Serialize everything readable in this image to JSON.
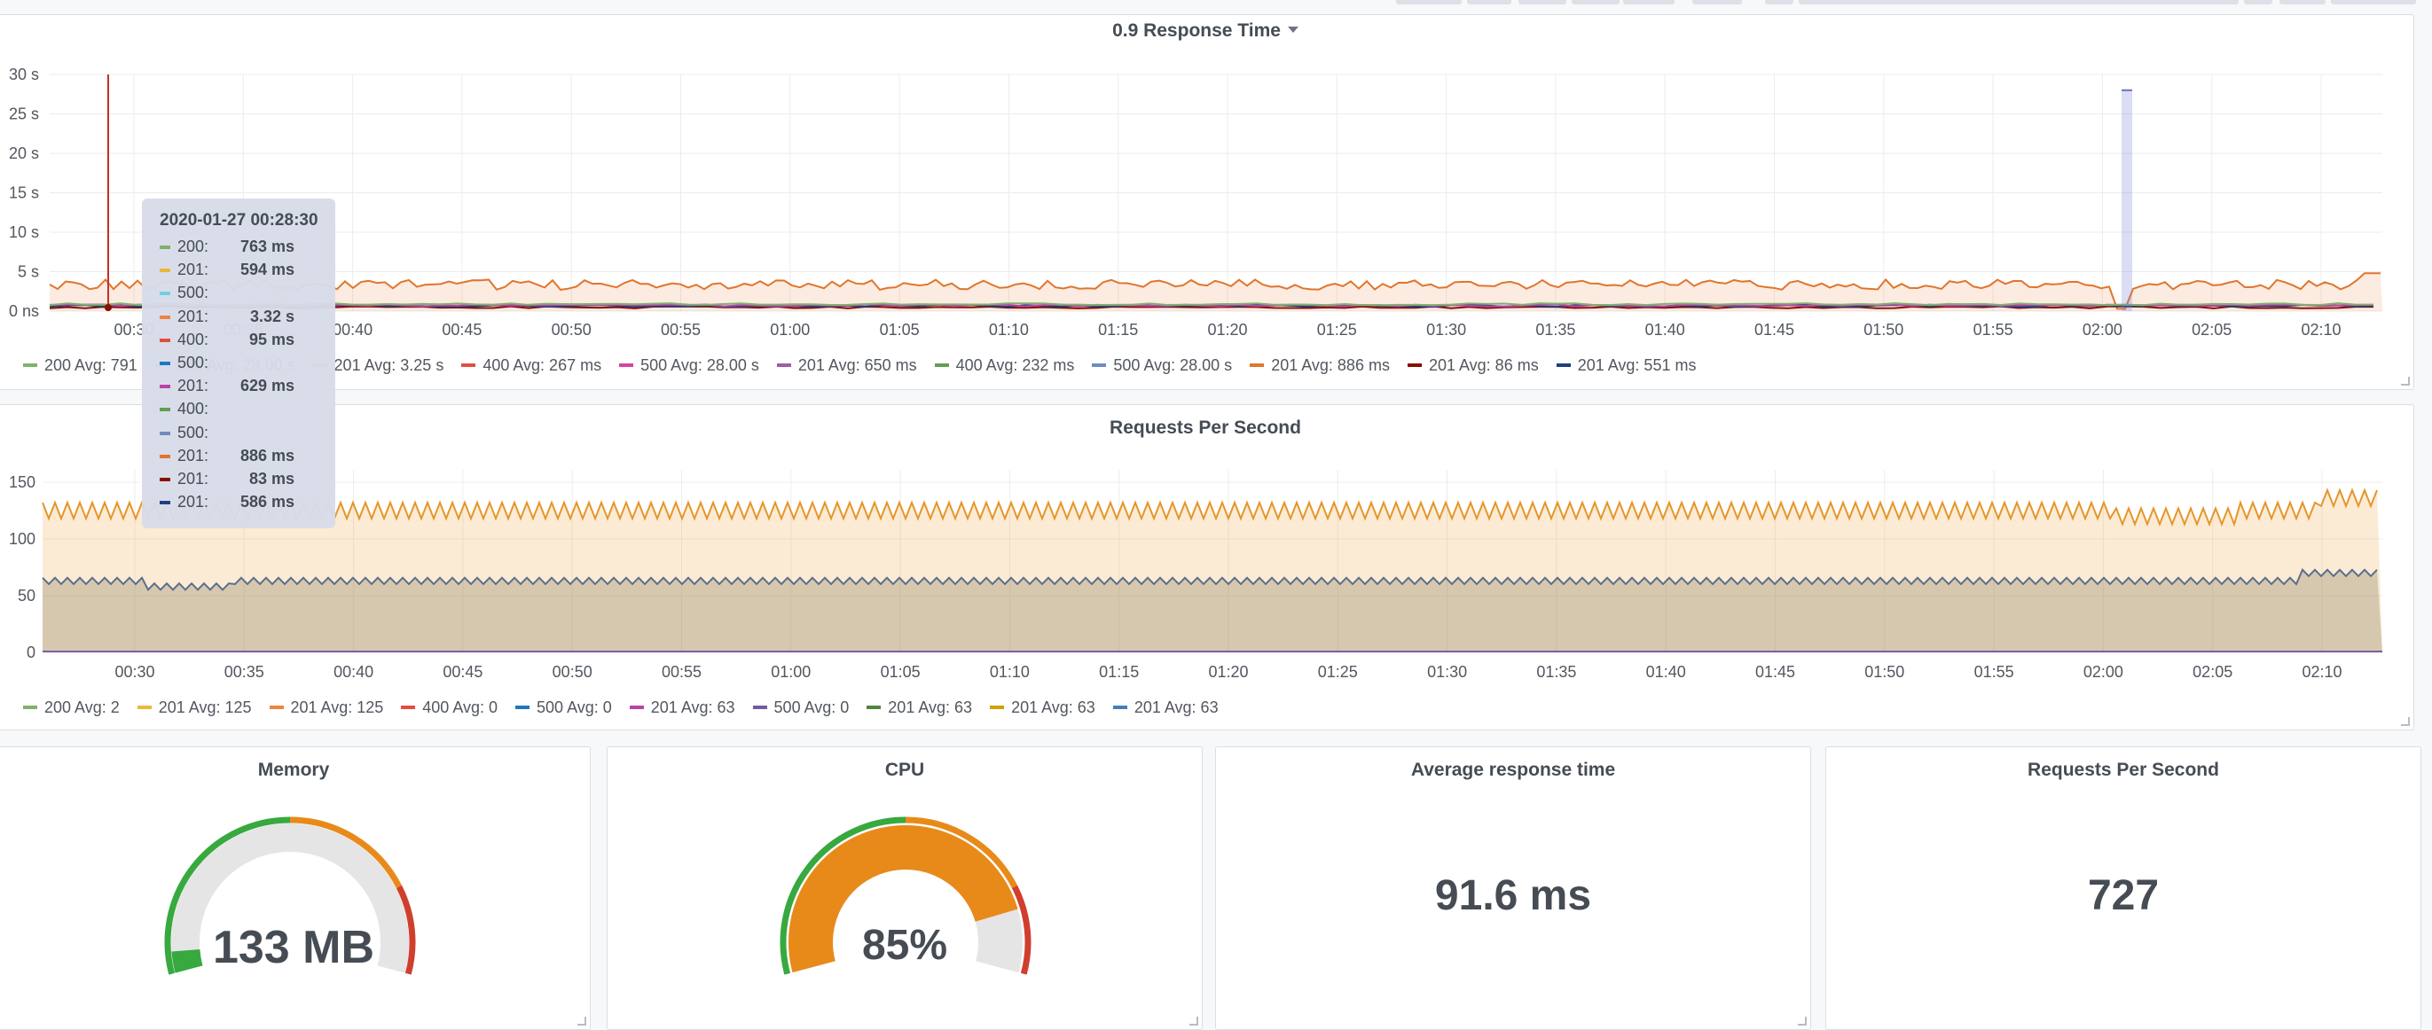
{
  "response_panel": {
    "title": "0.9 Response Time",
    "legend": [
      {
        "label": "200  Avg: 791",
        "color": "#7eb26d"
      },
      {
        "label": "500  Avg: 28.00 s",
        "color": "#6ed0e0"
      },
      {
        "label": "201  Avg: 3.25 s",
        "color": "#ef843c"
      },
      {
        "label": "400  Avg: 267 ms",
        "color": "#e24d42"
      },
      {
        "label": "500  Avg: 28.00 s",
        "color": "#d8439e"
      },
      {
        "label": "201  Avg: 650 ms",
        "color": "#a05da0"
      },
      {
        "label": "400  Avg: 232 ms",
        "color": "#629e51"
      },
      {
        "label": "500  Avg: 28.00 s",
        "color": "#6d8ebd"
      },
      {
        "label": "201  Avg: 886 ms",
        "color": "#e0752d"
      },
      {
        "label": "201  Avg: 86 ms",
        "color": "#890f02"
      },
      {
        "label": "201  Avg: 551 ms",
        "color": "#1f3f80"
      }
    ]
  },
  "requests_panel": {
    "title": "Requests Per Second",
    "legend": [
      {
        "label": "200  Avg: 2",
        "color": "#7eb26d"
      },
      {
        "label": "201  Avg: 125",
        "color": "#eab839"
      },
      {
        "label": "201  Avg: 125",
        "color": "#ef843c"
      },
      {
        "label": "400  Avg: 0",
        "color": "#e24d42"
      },
      {
        "label": "500  Avg: 0",
        "color": "#1f78c1"
      },
      {
        "label": "201  Avg: 63",
        "color": "#ba43a9"
      },
      {
        "label": "500  Avg: 0",
        "color": "#705da0"
      },
      {
        "label": "201  Avg: 63",
        "color": "#508642"
      },
      {
        "label": "201  Avg: 63",
        "color": "#cca300"
      },
      {
        "label": "201  Avg: 63",
        "color": "#447ebc"
      }
    ]
  },
  "tooltip": {
    "time": "2020-01-27 00:28:30",
    "rows": [
      {
        "label": "200:",
        "value": "763 ms",
        "color": "#7eb26d"
      },
      {
        "label": "201:",
        "value": "594 ms",
        "color": "#eab839"
      },
      {
        "label": "500:",
        "value": "",
        "color": "#6ed0e0"
      },
      {
        "label": "201:",
        "value": "3.32 s",
        "color": "#ef843c"
      },
      {
        "label": "400:",
        "value": "95 ms",
        "color": "#e24d42"
      },
      {
        "label": "500:",
        "value": "",
        "color": "#1f78c1"
      },
      {
        "label": "201:",
        "value": "629 ms",
        "color": "#ba43a9"
      },
      {
        "label": "400:",
        "value": "",
        "color": "#629e51"
      },
      {
        "label": "500:",
        "value": "",
        "color": "#6d8ebd"
      },
      {
        "label": "201:",
        "value": "886 ms",
        "color": "#e0752d"
      },
      {
        "label": "201:",
        "value": "83 ms",
        "color": "#890f02"
      },
      {
        "label": "201:",
        "value": "586 ms",
        "color": "#1f3f80"
      }
    ]
  },
  "memory_panel": {
    "title": "Memory",
    "value": "133 MB",
    "fraction": 0.05
  },
  "cpu_panel": {
    "title": "CPU",
    "value": "85%",
    "fraction": 0.85
  },
  "avg_response_panel": {
    "title": "Average response time",
    "value": "91.6 ms"
  },
  "rps_stat_panel": {
    "title": "Requests Per Second",
    "value": "727"
  },
  "chart_data": [
    {
      "type": "area",
      "title": "0.9 Response Time",
      "yticks": [
        "0 ns",
        "5 s",
        "10 s",
        "15 s",
        "20 s",
        "25 s",
        "30 s"
      ],
      "xticks": [
        "00:30",
        "00:35",
        "00:40",
        "00:45",
        "00:50",
        "00:55",
        "01:00",
        "01:05",
        "01:10",
        "01:15",
        "01:20",
        "01:25",
        "01:30",
        "01:35",
        "01:40",
        "01:45",
        "01:50",
        "01:55",
        "02:00",
        "02:05",
        "02:10"
      ],
      "ylim": [
        0,
        30
      ],
      "series": [
        {
          "name": "201",
          "approx_level_s": 3.3
        },
        {
          "name": "500",
          "spike_at": "02:00",
          "spike_value_s": 28
        }
      ]
    },
    {
      "type": "area",
      "title": "Requests Per Second",
      "yticks": [
        "0",
        "50",
        "100",
        "150"
      ],
      "xticks": [
        "00:30",
        "00:35",
        "00:40",
        "00:45",
        "00:50",
        "00:55",
        "01:00",
        "01:05",
        "01:10",
        "01:15",
        "01:20",
        "01:25",
        "01:30",
        "01:35",
        "01:40",
        "01:45",
        "01:50",
        "01:55",
        "02:00",
        "02:05",
        "02:10"
      ],
      "ylim": [
        0,
        160
      ],
      "series": [
        {
          "name": "201",
          "approx_level": 125
        },
        {
          "name": "201",
          "approx_level": 63
        }
      ]
    }
  ]
}
